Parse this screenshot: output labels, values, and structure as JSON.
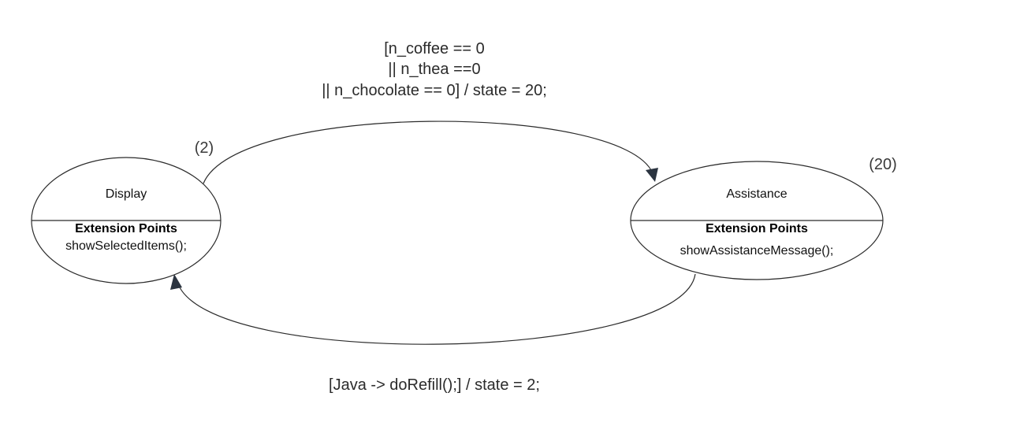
{
  "states": {
    "display": {
      "id_label": "(2)",
      "name": "Display",
      "extension_title": "Extension Points",
      "extension_item": "showSelectedItems();"
    },
    "assistance": {
      "id_label": "(20)",
      "name": "Assistance",
      "extension_title": "Extension Points",
      "extension_item": "showAssistanceMessage();"
    }
  },
  "transitions": {
    "display_to_assistance": {
      "lines": [
        "[n_coffee == 0",
        "|| n_thea ==0",
        "|| n_chocolate == 0] / state = 20;"
      ]
    },
    "assistance_to_display": {
      "label": "[Java -> doRefill();] / state = 2;"
    }
  },
  "colors": {
    "stroke": "#2b2b2b",
    "arrowhead": "#2b3440",
    "background": "#ffffff"
  }
}
